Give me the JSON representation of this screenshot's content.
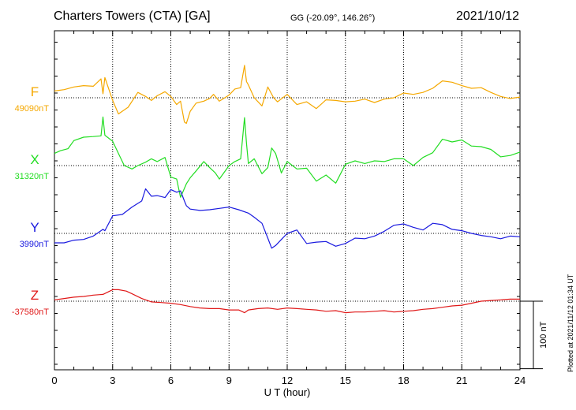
{
  "header": {
    "title": "Charters Towers (CTA)  [GA]",
    "coords": "GG (-20.09°, 146.26°)",
    "date": "2021/10/12",
    "plotted": "Plotted at 2021/11/12 01:34 UT"
  },
  "chart_data": {
    "type": "line",
    "xlabel": "U T (hour)",
    "x_ticks": [
      "0",
      "3",
      "6",
      "9",
      "12",
      "15",
      "18",
      "21",
      "24"
    ],
    "xlim": [
      0,
      24
    ],
    "grid": true,
    "scale_bar": "100 nT",
    "nT_per_division": 100,
    "series": [
      {
        "name": "F",
        "baseline": "49090nT",
        "color": "#f5a800",
        "x": [
          0,
          0.5,
          1,
          1.5,
          2,
          2.4,
          2.5,
          2.6,
          3,
          3.3,
          3.8,
          4.3,
          4.7,
          5,
          5.3,
          5.7,
          6,
          6.3,
          6.5,
          6.7,
          6.8,
          7.0,
          7.3,
          7.7,
          8,
          8.2,
          8.5,
          9,
          9.3,
          9.6,
          9.8,
          9.9,
          10,
          10.3,
          10.7,
          11,
          11.3,
          11.5,
          12,
          12.5,
          13,
          13.5,
          14,
          14.5,
          15,
          15.5,
          16,
          16.5,
          17,
          17.5,
          18,
          18.5,
          19,
          19.5,
          20,
          20.5,
          21,
          21.5,
          22,
          22.5,
          23,
          23.5,
          24
        ],
        "y": [
          0.1,
          0.12,
          0.16,
          0.18,
          0.17,
          0.28,
          0.06,
          0.3,
          -0.04,
          -0.24,
          -0.14,
          0.08,
          0.02,
          -0.04,
          0.03,
          0.09,
          0.02,
          -0.1,
          -0.05,
          -0.36,
          -0.38,
          -0.2,
          -0.08,
          -0.05,
          -0.01,
          0.05,
          -0.05,
          0.04,
          0.13,
          0.15,
          0.48,
          0.24,
          0.19,
          0.0,
          -0.12,
          0.16,
          0.0,
          -0.06,
          0.05,
          -0.1,
          -0.06,
          -0.16,
          -0.03,
          -0.04,
          -0.06,
          -0.05,
          -0.02,
          -0.07,
          -0.02,
          0.0,
          0.07,
          0.05,
          0.08,
          0.14,
          0.25,
          0.23,
          0.18,
          0.14,
          0.15,
          0.08,
          0.02,
          -0.01,
          0.01
        ]
      },
      {
        "name": "X",
        "baseline": "31320nT",
        "color": "#22dd22",
        "x": [
          0,
          0.3,
          0.7,
          1,
          1.5,
          2,
          2.4,
          2.5,
          2.6,
          3,
          3.3,
          3.6,
          4,
          4.3,
          4.7,
          5,
          5.3,
          5.7,
          6,
          6.3,
          6.5,
          6.8,
          7.0,
          7.3,
          7.7,
          8,
          8.3,
          8.5,
          9,
          9.3,
          9.6,
          9.8,
          9.9,
          10,
          10.3,
          10.7,
          11,
          11.2,
          11.4,
          11.7,
          12,
          12.5,
          13,
          13.5,
          14,
          14.5,
          15,
          15.5,
          16,
          16.5,
          17,
          17.5,
          18,
          18.5,
          19,
          19.5,
          20,
          20.5,
          21,
          21.5,
          22,
          22.5,
          23,
          23.5,
          24
        ],
        "y": [
          0.18,
          0.22,
          0.25,
          0.37,
          0.42,
          0.43,
          0.44,
          0.72,
          0.45,
          0.36,
          0.18,
          0.0,
          -0.05,
          0.0,
          0.05,
          0.1,
          0.06,
          0.12,
          -0.17,
          -0.2,
          -0.47,
          -0.27,
          -0.18,
          -0.08,
          0.06,
          -0.03,
          -0.11,
          -0.2,
          0.0,
          0.06,
          0.1,
          0.71,
          0.33,
          0.03,
          0.1,
          -0.12,
          -0.03,
          0.26,
          0.18,
          -0.11,
          0.06,
          -0.05,
          -0.04,
          -0.23,
          -0.14,
          -0.26,
          0.02,
          0.07,
          0.03,
          0.07,
          0.06,
          0.1,
          0.1,
          0.0,
          0.12,
          0.19,
          0.39,
          0.35,
          0.38,
          0.29,
          0.28,
          0.24,
          0.13,
          0.15,
          0.2
        ]
      },
      {
        "name": "Y",
        "baseline": "3990nT",
        "color": "#1a1adf",
        "x": [
          0,
          0.5,
          1,
          1.5,
          2,
          2.5,
          2.6,
          3,
          3.5,
          4,
          4.5,
          4.7,
          5,
          5.3,
          5.7,
          6,
          6.3,
          6.5,
          6.7,
          6.8,
          7,
          7.5,
          8,
          8.5,
          9,
          9.5,
          10,
          10.3,
          10.7,
          11,
          11.2,
          11.4,
          11.7,
          12,
          12.5,
          13,
          13.5,
          14,
          14.5,
          15,
          15.5,
          16,
          16.5,
          17,
          17.5,
          18,
          18.5,
          19,
          19.5,
          20,
          20.5,
          21,
          21.5,
          22,
          22.5,
          23,
          23.5,
          24
        ],
        "y": [
          -0.14,
          -0.14,
          -0.1,
          -0.09,
          -0.04,
          0.06,
          0.04,
          0.26,
          0.28,
          0.39,
          0.48,
          0.66,
          0.55,
          0.56,
          0.53,
          0.65,
          0.61,
          0.63,
          0.48,
          0.41,
          0.36,
          0.34,
          0.35,
          0.37,
          0.39,
          0.35,
          0.3,
          0.24,
          0.15,
          -0.07,
          -0.22,
          -0.18,
          -0.09,
          0.0,
          0.05,
          -0.15,
          -0.13,
          -0.12,
          -0.19,
          -0.15,
          -0.07,
          -0.08,
          -0.04,
          0.03,
          0.12,
          0.14,
          0.09,
          0.05,
          0.15,
          0.13,
          0.06,
          0.04,
          0.0,
          -0.03,
          -0.05,
          -0.08,
          -0.04,
          -0.05
        ]
      },
      {
        "name": "Z",
        "baseline": "-37580nT",
        "color": "#e01818",
        "x": [
          0,
          0.5,
          1,
          1.5,
          2,
          2.5,
          3,
          3.3,
          3.7,
          4,
          4.5,
          5,
          5.5,
          6,
          6.5,
          7,
          7.5,
          8,
          8.5,
          9,
          9.5,
          9.8,
          10,
          10.5,
          11,
          11.5,
          12,
          12.5,
          13,
          13.5,
          14,
          14.5,
          15,
          15.5,
          16,
          16.5,
          17,
          17.5,
          18,
          18.5,
          19,
          19.5,
          20,
          20.5,
          21,
          21.5,
          22,
          22.5,
          23,
          23.5,
          24
        ],
        "y": [
          0.02,
          0.04,
          0.06,
          0.07,
          0.09,
          0.1,
          0.17,
          0.17,
          0.15,
          0.11,
          0.04,
          -0.01,
          -0.02,
          -0.03,
          -0.05,
          -0.08,
          -0.1,
          -0.11,
          -0.11,
          -0.13,
          -0.13,
          -0.17,
          -0.13,
          -0.11,
          -0.1,
          -0.12,
          -0.1,
          -0.11,
          -0.12,
          -0.13,
          -0.15,
          -0.14,
          -0.17,
          -0.16,
          -0.16,
          -0.15,
          -0.14,
          -0.16,
          -0.15,
          -0.14,
          -0.12,
          -0.11,
          -0.09,
          -0.07,
          -0.06,
          -0.03,
          0.0,
          0.01,
          0.02,
          0.03,
          0.03
        ]
      }
    ]
  }
}
